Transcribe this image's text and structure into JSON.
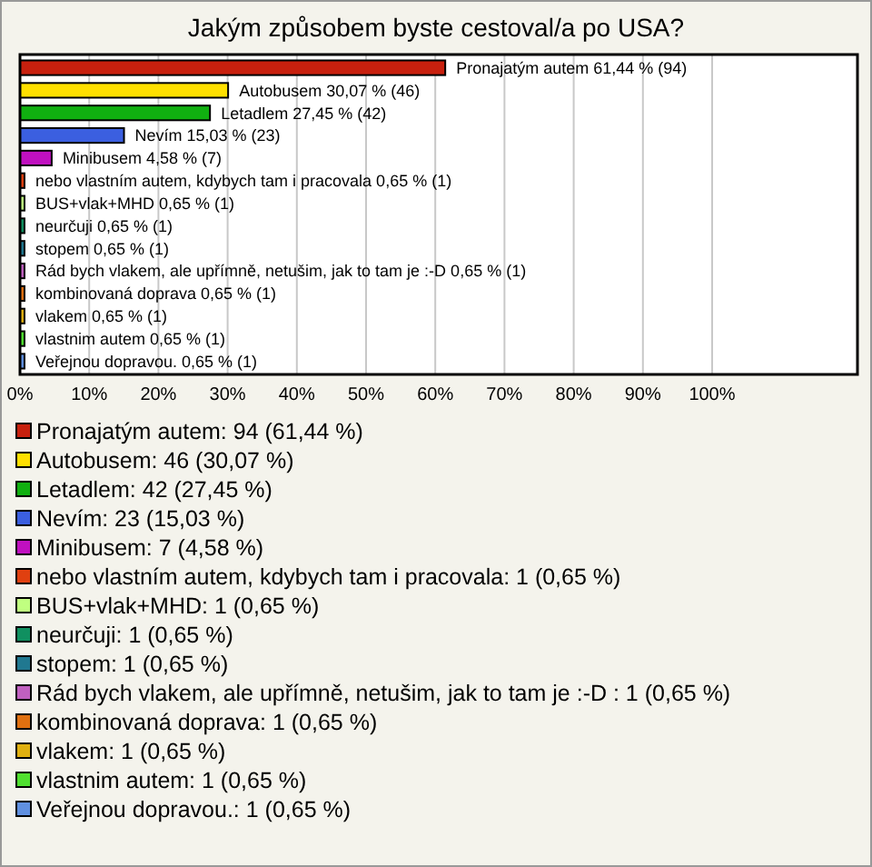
{
  "chart_data": {
    "type": "bar",
    "orientation": "horizontal",
    "title": "Jakým způsobem byste cestoval/a po USA?",
    "categories": [
      "Pronajatým autem",
      "Autobusem",
      "Letadlem",
      "Nevím",
      "Minibusem",
      "nebo vlastním autem, kdybych tam i pracovala",
      "BUS+vlak+MHD",
      "neurčuji",
      "stopem",
      "Rád bych vlakem, ale upřímně, netušim, jak to tam je :-D ",
      "kombinovaná doprava",
      "vlakem",
      "vlastnim autem",
      "Veřejnou dopravou."
    ],
    "values": [
      61.44,
      30.07,
      27.45,
      15.03,
      4.58,
      0.65,
      0.65,
      0.65,
      0.65,
      0.65,
      0.65,
      0.65,
      0.65,
      0.65
    ],
    "value_labels": [
      "61,44 % (94)",
      "30,07 % (46)",
      "27,45 % (42)",
      "15,03 % (23)",
      "4,58 % (7)",
      "0,65 % (1)",
      "0,65 % (1)",
      "0,65 % (1)",
      "0,65 % (1)",
      "0,65 % (1)",
      "0,65 % (1)",
      "0,65 % (1)",
      "0,65 % (1)",
      "0,65 % (1)"
    ],
    "colors": [
      "#c8200e",
      "#ffe000",
      "#10b010",
      "#3b5fe0",
      "#c010c0",
      "#e04010",
      "#c0ff80",
      "#109060",
      "#207890",
      "#c060c0",
      "#e07010",
      "#e0b010",
      "#50e030",
      "#6090e0"
    ],
    "xlim": [
      0,
      121
    ],
    "xticks": [
      {
        "value": 0,
        "label": "0%"
      },
      {
        "value": 10,
        "label": "10%"
      },
      {
        "value": 20,
        "label": "20%"
      },
      {
        "value": 30,
        "label": "30%"
      },
      {
        "value": 40,
        "label": "40%"
      },
      {
        "value": 50,
        "label": "50%"
      },
      {
        "value": 60,
        "label": "60%"
      },
      {
        "value": 70,
        "label": "70%"
      },
      {
        "value": 80,
        "label": "80%"
      },
      {
        "value": 90,
        "label": "90%"
      },
      {
        "value": 100,
        "label": "100%"
      }
    ],
    "grid": "x",
    "annotations": [
      "Pronajatým autem: 94 (61,44 %)",
      "Autobusem: 46 (30,07 %)",
      "Letadlem: 42 (27,45 %)",
      "Nevím: 23 (15,03 %)",
      "Minibusem: 7 (4,58 %)",
      "nebo vlastním autem, kdybych tam i pracovala: 1 (0,65 %)",
      "BUS+vlak+MHD: 1 (0,65 %)",
      "neurčuji: 1 (0,65 %)",
      "stopem: 1 (0,65 %)",
      "Rád bych vlakem, ale upřímně, netušim, jak to tam je :-D : 1 (0,65 %)",
      "kombinovaná doprava: 1 (0,65 %)",
      "vlakem: 1 (0,65 %)",
      "vlastnim autem: 1 (0,65 %)",
      "Veřejnou dopravou.: 1 (0,65 %)"
    ]
  }
}
